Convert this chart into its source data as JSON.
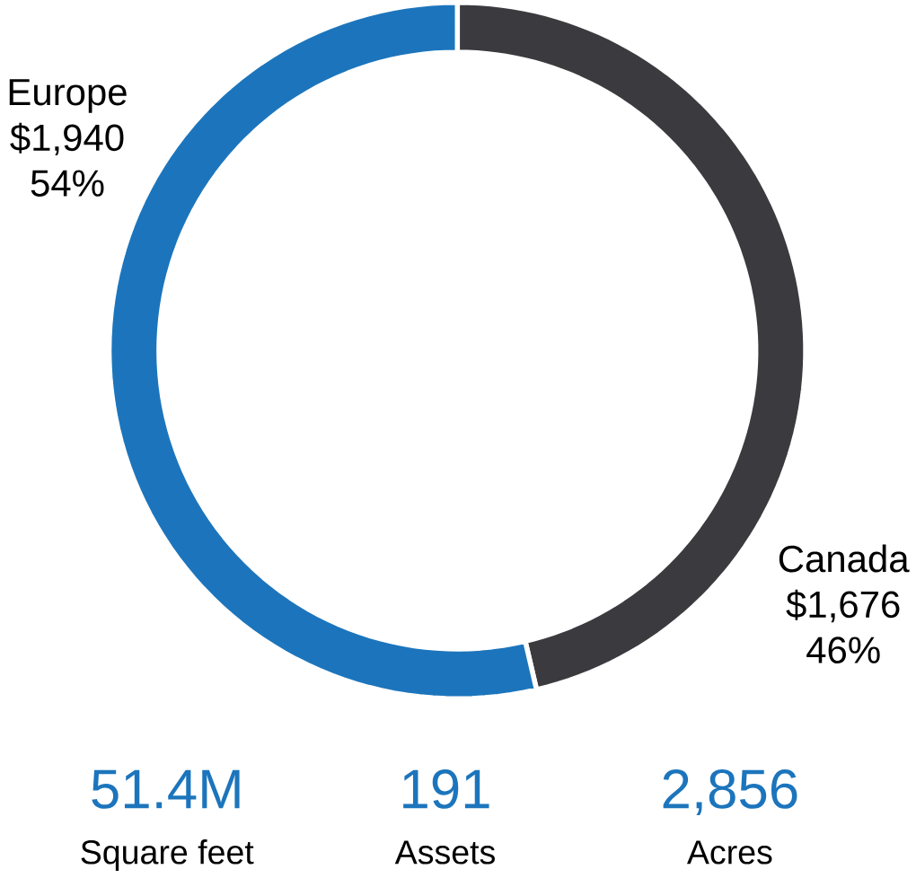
{
  "chart_data": {
    "type": "donut",
    "categories": [
      "Canada",
      "Europe"
    ],
    "values": [
      1676,
      1940
    ],
    "colors": [
      "#3b3b3f",
      "#1c75bc"
    ],
    "value_labels": [
      "$1,676",
      "$1,940"
    ],
    "annotations": [
      "46%",
      "54%",
      "51.4M",
      "Square feet",
      "191",
      "Assets",
      "2,856",
      "Acres"
    ]
  }
}
